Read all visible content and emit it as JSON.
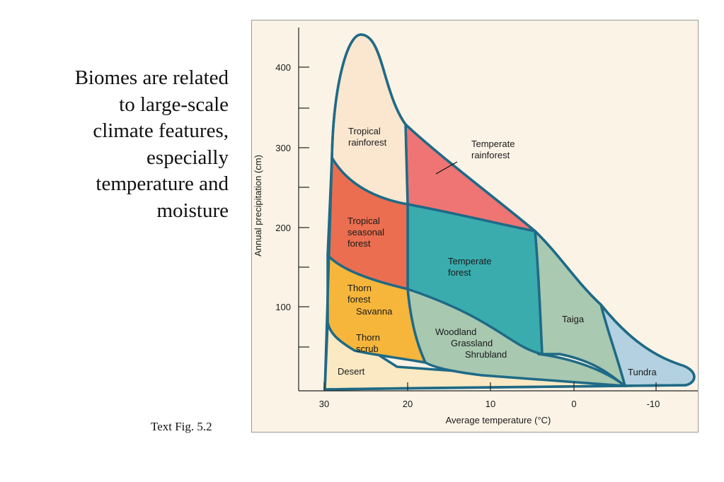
{
  "caption_lines": [
    "Biomes are related",
    "to large-scale",
    "climate features,",
    "especially",
    "temperature and",
    "moisture"
  ],
  "figure_ref": "Text Fig. 5.2",
  "chart": {
    "ylabel": "Annual precipitation (cm)",
    "xlabel": "Average temperature (°C)",
    "y_ticks": [
      "100",
      "200",
      "300",
      "400"
    ],
    "x_ticks": [
      "30",
      "20",
      "10",
      "0",
      "-10"
    ]
  },
  "biomes": {
    "tropical_rainforest": [
      "Tropical",
      "rainforest"
    ],
    "temperate_rainforest": [
      "Temperate",
      "rainforest"
    ],
    "tropical_seasonal_forest": [
      "Tropical",
      "seasonal",
      "forest"
    ],
    "temperate_forest": [
      "Temperate",
      "forest"
    ],
    "thorn_forest": [
      "Thorn",
      "forest"
    ],
    "savanna": "Savanna",
    "thorn_scrub": [
      "Thorn",
      "scrub"
    ],
    "woodland": [
      "Woodland",
      "Grassland",
      "Shrubland"
    ],
    "taiga": "Taiga",
    "tundra": "Tundra",
    "desert": "Desert"
  },
  "colors": {
    "outline": "#1f6a86",
    "tropical_rainforest": "#fbe6cf",
    "temperate_rainforest": "#ee7574",
    "tropical_seasonal_forest": "#ea6e4f",
    "temperate_forest": "#3aacae",
    "thorn": "#f5b63b",
    "woodland": "#a8c8b0",
    "taiga": "#a9c9b1",
    "tundra": "#b3d1e0",
    "desert": "#fbe9c3"
  }
}
